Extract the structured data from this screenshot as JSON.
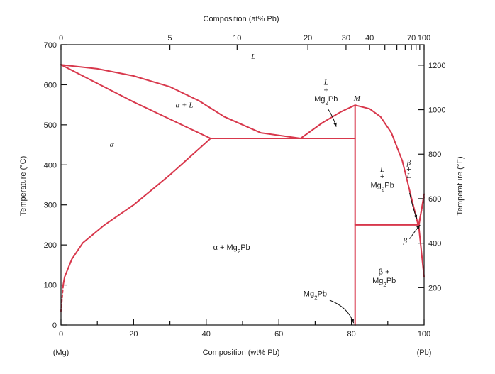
{
  "chart_data": {
    "type": "line",
    "title": "",
    "xlabel_bottom": "Composition (wt% Pb)",
    "xlabel_top": "Composition (at% Pb)",
    "ylabel_left": "Temperature (°C)",
    "ylabel_right": "Temperature (°F)",
    "endpoint_left": "(Mg)",
    "endpoint_right": "(Pb)",
    "xlim": [
      0,
      100
    ],
    "ylim": [
      0,
      700
    ],
    "x_ticks": [
      0,
      20,
      40,
      60,
      80,
      100
    ],
    "y_ticks": [
      0,
      100,
      200,
      300,
      400,
      500,
      600,
      700
    ],
    "top_ticks": [
      {
        "label": "0",
        "wt": 0
      },
      {
        "label": "5",
        "wt": 30
      },
      {
        "label": "10",
        "wt": 48.5
      },
      {
        "label": "20",
        "wt": 68
      },
      {
        "label": "30",
        "wt": 78.5
      },
      {
        "label": "40",
        "wt": 85
      },
      {
        "label": "",
        "wt": 89.2
      },
      {
        "label": "",
        "wt": 92.5
      },
      {
        "label": "",
        "wt": 94.8
      },
      {
        "label": "70",
        "wt": 96.5
      },
      {
        "label": "",
        "wt": 97.8
      },
      {
        "label": "",
        "wt": 98.8
      },
      {
        "label": "100",
        "wt": 100
      }
    ],
    "right_ticks_F": [
      {
        "label": "200",
        "value": 200
      },
      {
        "label": "400",
        "value": 400
      },
      {
        "label": "600",
        "value": 600
      },
      {
        "label": "800",
        "value": 800
      },
      {
        "label": "1000",
        "value": 1000
      },
      {
        "label": "1200",
        "value": 1200
      }
    ],
    "series": [
      {
        "values": [
          [
            0,
            650
          ],
          [
            10,
            640
          ],
          [
            20,
            622
          ],
          [
            30,
            595
          ],
          [
            38,
            560
          ],
          [
            45,
            520
          ],
          [
            55,
            480
          ],
          [
            66,
            466
          ]
        ]
      },
      {
        "values": [
          [
            0,
            650
          ],
          [
            20,
            557
          ],
          [
            41.2,
            466
          ]
        ]
      },
      {
        "values": [
          [
            41.2,
            466
          ],
          [
            30,
            375
          ],
          [
            20,
            300
          ],
          [
            12,
            250
          ],
          [
            6,
            205
          ],
          [
            3,
            165
          ],
          [
            1,
            120
          ],
          [
            0.6,
            100
          ]
        ]
      },
      {
        "values": [
          [
            0.6,
            100
          ],
          [
            0,
            35
          ]
        ],
        "style": "dashed"
      },
      {
        "values": [
          [
            41.2,
            466
          ],
          [
            81,
            466
          ]
        ]
      },
      {
        "values": [
          [
            66,
            466
          ],
          [
            72,
            505
          ],
          [
            77,
            532
          ],
          [
            81,
            549
          ]
        ]
      },
      {
        "values": [
          [
            81,
            549
          ],
          [
            85,
            540
          ],
          [
            88,
            520
          ],
          [
            91,
            480
          ],
          [
            94,
            410
          ],
          [
            97,
            300
          ],
          [
            98.5,
            245
          ],
          [
            100,
            327
          ]
        ]
      },
      {
        "values": [
          [
            81,
            0
          ],
          [
            81,
            549
          ]
        ]
      },
      {
        "values": [
          [
            81,
            250
          ],
          [
            98.5,
            250
          ]
        ]
      },
      {
        "values": [
          [
            98.5,
            250
          ],
          [
            100,
            320
          ]
        ]
      },
      {
        "values": [
          [
            98.5,
            250
          ],
          [
            99.3,
            180
          ],
          [
            100,
            120
          ]
        ]
      }
    ],
    "annotations": [
      {
        "text": "L",
        "x": 53,
        "y": 665,
        "style": "italic"
      },
      {
        "text": "α + L",
        "x": 34,
        "y": 543,
        "style": "italic"
      },
      {
        "text": "α",
        "x": 14,
        "y": 445,
        "style": "italic"
      },
      {
        "text": "α + Mg₂Pb",
        "x": 47,
        "y": 188,
        "style": "mixed"
      },
      {
        "text": "L",
        "x": 73,
        "y": 600,
        "style": "italic"
      },
      {
        "text": "+",
        "x": 73,
        "y": 580,
        "style": "plain"
      },
      {
        "text": "Mg₂Pb",
        "x": 73,
        "y": 558,
        "style": "plain"
      },
      {
        "text": "M",
        "x": 81.5,
        "y": 560,
        "style": "italic"
      },
      {
        "text": "L",
        "x": 88.5,
        "y": 383,
        "style": "italic"
      },
      {
        "text": "+",
        "x": 88.5,
        "y": 365,
        "style": "plain"
      },
      {
        "text": "Mg₂Pb",
        "x": 88.5,
        "y": 343,
        "style": "plain"
      },
      {
        "text": "β",
        "x": 95.8,
        "y": 400,
        "style": "italic"
      },
      {
        "text": "+",
        "x": 95.8,
        "y": 383,
        "style": "plain"
      },
      {
        "text": "L",
        "x": 95.8,
        "y": 367,
        "style": "italic"
      },
      {
        "text": "β",
        "x": 94.8,
        "y": 205,
        "style": "italic"
      },
      {
        "text": "β +",
        "x": 89,
        "y": 127,
        "style": "mixed"
      },
      {
        "text": "Mg₂Pb",
        "x": 89,
        "y": 105,
        "style": "plain"
      },
      {
        "text": "Mg₂Pb",
        "x": 70,
        "y": 72,
        "style": "plain"
      }
    ]
  }
}
